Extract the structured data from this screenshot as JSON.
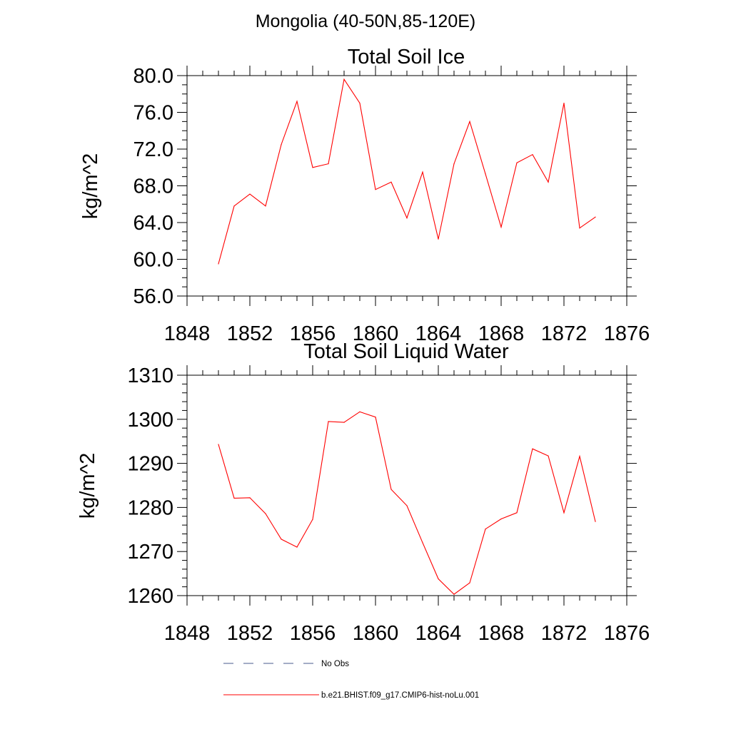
{
  "figure_title": "Mongolia (40-50N,85-120E)",
  "legend": [
    {
      "label": "No Obs",
      "style": "dashed",
      "color": "#4a5a8c"
    },
    {
      "label": "b.e21.BHIST.f09_g17.CMIP6-hist-noLu.001",
      "style": "solid",
      "color": "#ff0000"
    }
  ],
  "chart_data": [
    {
      "type": "line",
      "title": "Total Soil Ice",
      "ylabel": "kg/m^2",
      "xlabel": "",
      "xlim": [
        1848,
        1876
      ],
      "ylim": [
        56,
        80
      ],
      "x_ticks": [
        1848,
        1852,
        1856,
        1860,
        1864,
        1868,
        1872,
        1876
      ],
      "x_tick_labels": [
        "1848",
        "1852",
        "1856",
        "1860",
        "1864",
        "1868",
        "1872",
        "1876"
      ],
      "y_ticks": [
        56,
        60,
        64,
        68,
        72,
        76,
        80
      ],
      "y_tick_labels": [
        "56.0",
        "60.0",
        "64.0",
        "68.0",
        "72.0",
        "76.0",
        "80.0"
      ],
      "x_minor_step": 1,
      "y_minor_step": 1,
      "grid": false,
      "series": [
        {
          "color": "#ff0000",
          "x": [
            1850,
            1851,
            1852,
            1853,
            1854,
            1855,
            1856,
            1857,
            1858,
            1859,
            1860,
            1861,
            1862,
            1863,
            1864,
            1865,
            1866,
            1867,
            1868,
            1869,
            1870,
            1871,
            1872,
            1873,
            1874
          ],
          "y": [
            59.5,
            65.8,
            67.1,
            65.8,
            72.5,
            77.2,
            70.0,
            70.4,
            79.6,
            77.0,
            67.6,
            68.4,
            64.5,
            69.5,
            62.2,
            70.4,
            75.0,
            69.3,
            63.5,
            70.5,
            71.4,
            68.4,
            77.0,
            63.4,
            64.6
          ]
        }
      ]
    },
    {
      "type": "line",
      "title": "Total Soil Liquid Water",
      "ylabel": "kg/m^2",
      "xlabel": "",
      "xlim": [
        1848,
        1876
      ],
      "ylim": [
        1260,
        1310
      ],
      "x_ticks": [
        1848,
        1852,
        1856,
        1860,
        1864,
        1868,
        1872,
        1876
      ],
      "x_tick_labels": [
        "1848",
        "1852",
        "1856",
        "1860",
        "1864",
        "1868",
        "1872",
        "1876"
      ],
      "y_ticks": [
        1260,
        1270,
        1280,
        1290,
        1300,
        1310
      ],
      "y_tick_labels": [
        "1260",
        "1270",
        "1280",
        "1290",
        "1300",
        "1310"
      ],
      "x_minor_step": 1,
      "y_minor_step": 2,
      "grid": false,
      "series": [
        {
          "color": "#ff0000",
          "x": [
            1850,
            1851,
            1852,
            1853,
            1854,
            1855,
            1856,
            1857,
            1858,
            1859,
            1860,
            1861,
            1862,
            1863,
            1864,
            1865,
            1866,
            1867,
            1868,
            1869,
            1870,
            1871,
            1872,
            1873,
            1874
          ],
          "y": [
            1294.3,
            1282.1,
            1282.2,
            1278.6,
            1272.8,
            1271.0,
            1277.3,
            1299.5,
            1299.3,
            1301.7,
            1300.5,
            1284.1,
            1280.4,
            1272.0,
            1263.8,
            1260.3,
            1262.9,
            1275.1,
            1277.4,
            1278.8,
            1293.3,
            1291.7,
            1278.8,
            1291.6,
            1276.8
          ]
        }
      ]
    }
  ]
}
